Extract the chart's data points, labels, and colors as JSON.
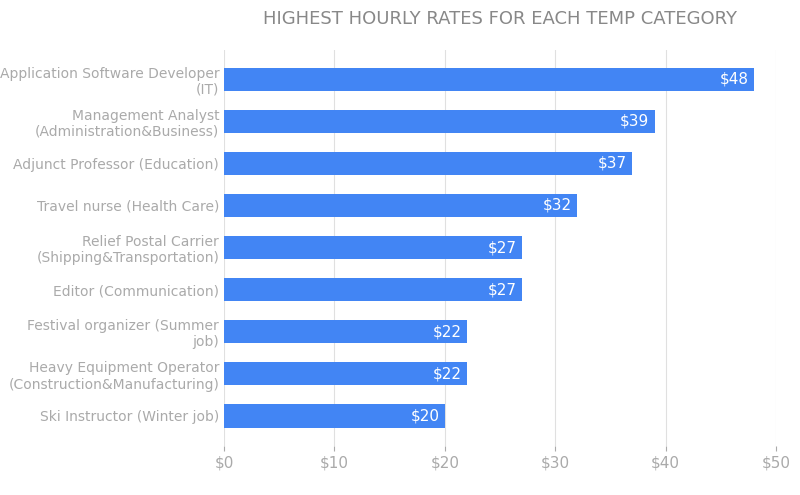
{
  "title": "HIGHEST HOURLY RATES FOR EACH TEMP CATEGORY",
  "categories": [
    "Application Software Developer\n(IT)",
    "Management Analyst\n(Administration&Business)",
    "Adjunct Professor (Education)",
    "Travel nurse (Health Care)",
    "Relief Postal Carrier\n(Shipping&Transportation)",
    "Editor (Communication)",
    "Festival organizer (Summer\njob)",
    "Heavy Equipment Operator\n(Construction&Manufacturing)",
    "Ski Instructor (Winter job)"
  ],
  "values": [
    48,
    39,
    37,
    32,
    27,
    27,
    22,
    22,
    20
  ],
  "bar_color": "#4285F4",
  "label_color": "#ffffff",
  "title_color": "#888888",
  "axis_label_color": "#aaaaaa",
  "tick_label_color": "#aaaaaa",
  "background_color": "#ffffff",
  "xlim": [
    0,
    50
  ],
  "xticks": [
    0,
    10,
    20,
    30,
    40,
    50
  ],
  "bar_height": 0.55,
  "title_fontsize": 13,
  "label_fontsize": 11,
  "tick_fontsize": 11,
  "category_fontsize": 10
}
